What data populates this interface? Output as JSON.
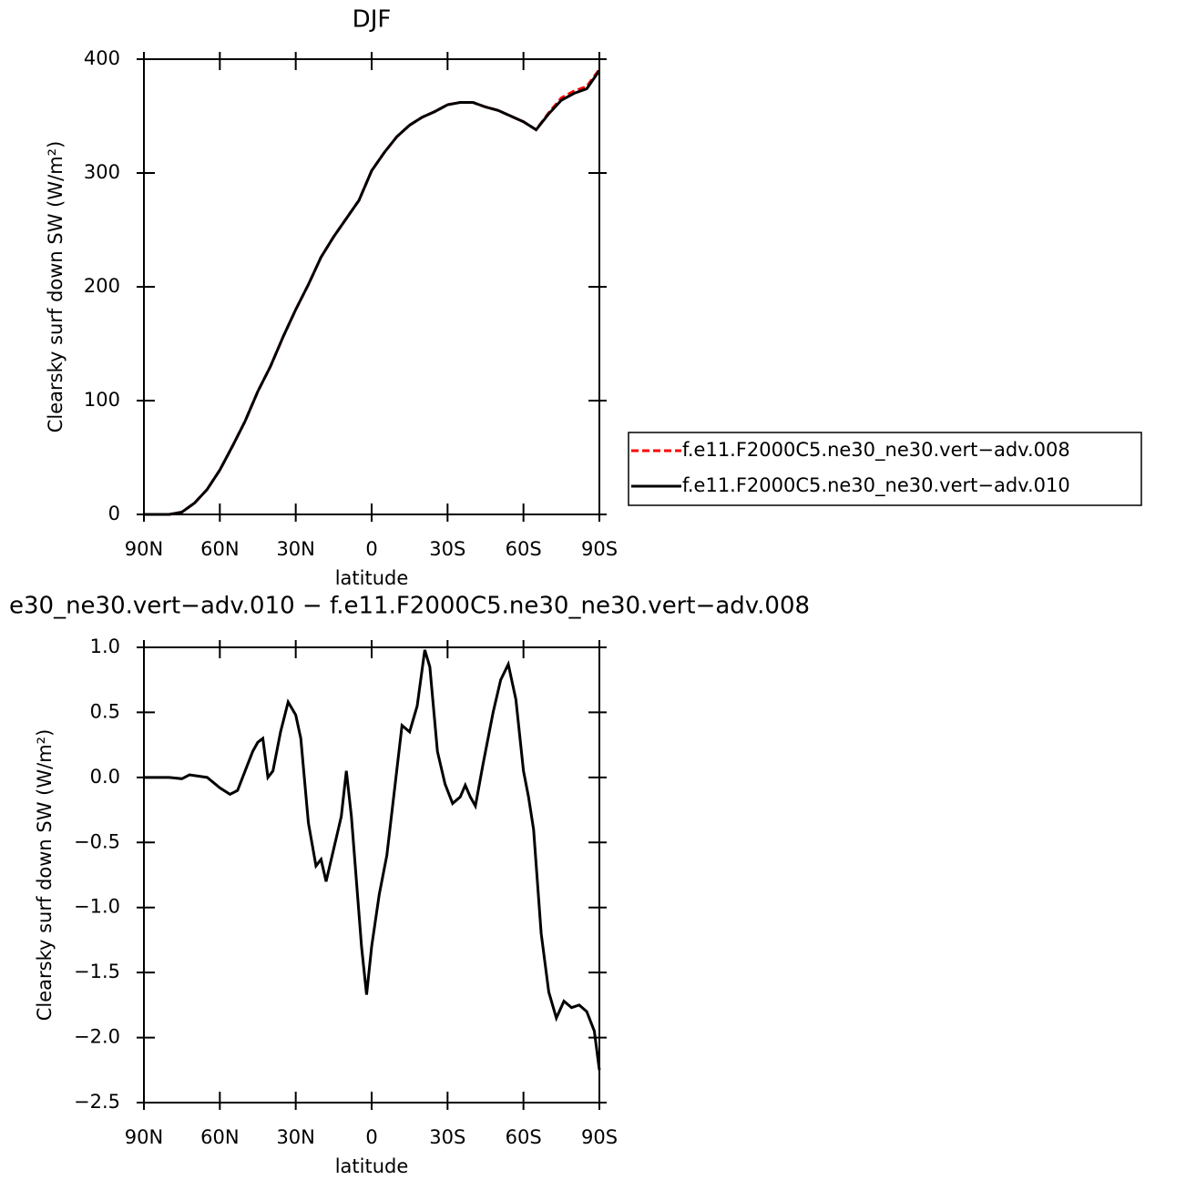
{
  "chart_data": [
    {
      "type": "line",
      "title": "DJF",
      "xlabel": "latitude",
      "ylabel": "Clearsky surf down SW (W/m²)",
      "x": [
        90,
        85,
        80,
        75,
        70,
        65,
        60,
        55,
        50,
        45,
        40,
        35,
        30,
        25,
        20,
        15,
        10,
        5,
        0,
        -5,
        -10,
        -15,
        -20,
        -25,
        -30,
        -35,
        -40,
        -45,
        -50,
        -55,
        -60,
        -65,
        -70,
        -75,
        -80,
        -85,
        -90
      ],
      "series": [
        {
          "name": "f.e11.F2000C5.ne30_ne30.vert−adv.008",
          "color": "#ff0000",
          "style": "dashed",
          "values": [
            0,
            0,
            0,
            2,
            10,
            22,
            39,
            60,
            82,
            108,
            130,
            156,
            180,
            202,
            226,
            244,
            260,
            276,
            302,
            318,
            332,
            342,
            349,
            354,
            360,
            362,
            362,
            358,
            355,
            350,
            345,
            338,
            353,
            366,
            372,
            376,
            391
          ]
        },
        {
          "name": "f.e11.F2000C5.ne30_ne30.vert−adv.010",
          "color": "#000000",
          "style": "solid",
          "values": [
            0,
            0,
            0,
            2,
            10,
            22,
            39,
            60,
            82,
            108,
            130,
            156,
            180,
            202,
            226,
            244,
            260,
            276,
            302,
            318,
            332,
            342,
            349,
            354,
            360,
            362,
            362,
            358,
            355,
            350,
            345,
            338,
            352,
            364,
            370,
            374,
            390
          ]
        }
      ],
      "xlim": [
        90,
        -90
      ],
      "xticks": [
        {
          "value": 90,
          "label": "90N"
        },
        {
          "value": 60,
          "label": "60N"
        },
        {
          "value": 30,
          "label": "30N"
        },
        0,
        {
          "value": -30,
          "label": "30S"
        },
        {
          "value": -60,
          "label": "60S"
        },
        {
          "value": -90,
          "label": "90S"
        }
      ],
      "ylim": [
        0,
        400
      ],
      "yticks": [
        0,
        100,
        200,
        300,
        400
      ]
    },
    {
      "type": "line",
      "title": "e30_ne30.vert−adv.010 − f.e11.F2000C5.ne30_ne30.vert−adv.008",
      "xlabel": "latitude",
      "ylabel": "Clearsky surf down SW (W/m²)",
      "x": [
        90,
        85,
        80,
        75,
        72,
        65,
        60,
        56,
        53,
        50,
        47,
        45,
        43,
        41,
        39,
        36,
        33,
        30,
        28,
        25,
        22,
        20,
        18,
        15,
        12,
        10,
        8,
        4,
        2,
        0,
        -3,
        -6,
        -9,
        -12,
        -15,
        -18,
        -21,
        -23,
        -26,
        -29,
        -32,
        -35,
        -37,
        -39,
        -41,
        -44,
        -48,
        -51,
        -54,
        -57,
        -60,
        -62,
        -64,
        -67,
        -70,
        -73,
        -76,
        -79,
        -82,
        -85,
        -88,
        -90
      ],
      "values": [
        0,
        0,
        0,
        -0.01,
        0.02,
        0,
        -0.08,
        -0.13,
        -0.1,
        0.05,
        0.2,
        0.27,
        0.3,
        0,
        0.05,
        0.35,
        0.58,
        0.48,
        0.3,
        -0.35,
        -0.68,
        -0.63,
        -0.8,
        -0.55,
        -0.3,
        0.05,
        -0.3,
        -1.3,
        -1.67,
        -1.3,
        -0.9,
        -0.6,
        -0.1,
        0.4,
        0.35,
        0.55,
        0.98,
        0.85,
        0.2,
        -0.05,
        -0.2,
        -0.15,
        -0.06,
        -0.15,
        -0.22,
        0.1,
        0.5,
        0.75,
        0.87,
        0.6,
        0.05,
        -0.15,
        -0.4,
        -1.2,
        -1.65,
        -1.85,
        -1.72,
        -1.77,
        -1.75,
        -1.8,
        -1.95,
        -2.25
      ],
      "color": "#000000",
      "xlim": [
        90,
        -90
      ],
      "xticks": [
        {
          "value": 90,
          "label": "90N"
        },
        {
          "value": 60,
          "label": "60N"
        },
        {
          "value": 30,
          "label": "30N"
        },
        0,
        {
          "value": -30,
          "label": "30S"
        },
        {
          "value": -60,
          "label": "60S"
        },
        {
          "value": -90,
          "label": "90S"
        }
      ],
      "ylim": [
        -2.5,
        1.0
      ],
      "yticks": [
        {
          "value": -2.5,
          "label": "−2.5"
        },
        {
          "value": -2,
          "label": "−2.0"
        },
        {
          "value": -1.5,
          "label": "−1.5"
        },
        {
          "value": -1,
          "label": "−1.0"
        },
        {
          "value": -0.5,
          "label": "−0.5"
        },
        {
          "value": 0,
          "label": "0.0"
        },
        {
          "value": 0.5,
          "label": "0.5"
        },
        {
          "value": 1,
          "label": "1.0"
        }
      ]
    }
  ]
}
